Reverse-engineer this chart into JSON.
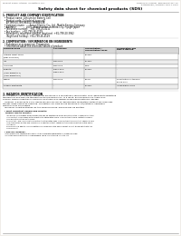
{
  "bg_color": "#f0ede8",
  "page_bg": "#ffffff",
  "header_left": "Product name: Lithium Ion Battery Cell",
  "header_right_line1": "Reference number: EBS25EC8APFA-75",
  "header_right_line2": "Established / Revision: Dec.7.2010",
  "title": "Safety data sheet for chemical products (SDS)",
  "section1_title": "1. PRODUCT AND COMPANY IDENTIFICATION",
  "section1_lines": [
    "  • Product name: Lithium Ion Battery Cell",
    "  • Product code: Cylindrical-type cell",
    "     BR18650U, BR18650U, BR18650A",
    "  • Company name:       Sanyo Electric Co., Ltd., Mobile Energy Company",
    "  • Address:               2001, Kamishinden, Sumoto-City, Hyogo, Japan",
    "  • Telephone number:   +81-799-20-4111",
    "  • Fax number:   +81-799-26-4129",
    "  • Emergency telephone number (daytime): +81-799-20-3962",
    "     (Night and holiday): +81-799-26-4129"
  ],
  "section2_title": "2. COMPOSITION / INFORMATION ON INGREDIENTS",
  "section2_sub1": "  • Substance or preparation: Preparation",
  "section2_sub2": "  • Information about the chemical nature of product:",
  "table_col0_header": "Chemical name",
  "table_headers": [
    "CAS number",
    "Concentration /\nConcentration range",
    "Classification and\nhazard labeling"
  ],
  "table_rows": [
    [
      "Lithium cobalt oxide\n(LiMn-Co-Ni2O4)",
      "-",
      "30-60%",
      "-"
    ],
    [
      "Iron",
      "7439-89-6",
      "10-30%",
      "-"
    ],
    [
      "Aluminum",
      "7429-90-5",
      "2-8%",
      "-"
    ],
    [
      "Graphite\n(Alkyl graphite-1)\n(Alkyl graphite-2)",
      "77590-42-5\n77582-44-2",
      "10-20%",
      "-"
    ],
    [
      "Copper",
      "7440-50-8",
      "5-15%",
      "Sensitization of the skin\ngroup No.2"
    ],
    [
      "Organic electrolyte",
      "-",
      "10-20%",
      "Inflammable liquid"
    ]
  ],
  "section3_title": "3. HAZARDS IDENTIFICATION",
  "section3_para1": "For the battery cell, chemical substances are stored in a hermetically sealed metal case, designed to withstand",
  "section3_para2": "temperature and pressure-temperature during normal use. As a result, during normal use, there is no",
  "section3_para3": "physical danger of ignition or explosion and there is no danger of hazardous materials leakage.",
  "section3_para4": "   However, if exposed to a fire, added mechanical shocks, decomposed, wires/stems without any measures,",
  "section3_para5": "the gas inside cannot be operated. The battery cell case will be breached or fire/extreme, hazardous",
  "section3_para6": "materials may be released.",
  "section3_para7": "   Moreover, if heated strongly by the surrounding fire, acid gas may be emitted.",
  "section3_bullet1": "  • Most important hazard and effects:",
  "section3_human": "    Human health effects:",
  "section3_human_lines": [
    "       Inhalation: The release of the electrolyte has an anesthesia action and stimulates in respiratory tract.",
    "       Skin contact: The release of the electrolyte stimulates a skin. The electrolyte skin contact causes a",
    "       sore and stimulation on the skin.",
    "       Eye contact: The release of the electrolyte stimulates eyes. The electrolyte eye contact causes a sore",
    "       and stimulation on the eye. Especially, a substance that causes a strong inflammation of the eye is",
    "       contained.",
    "       Environmental effects: Since a battery cell remains in the environment, do not throw out it into the",
    "       environment."
  ],
  "section3_bullet2": "  • Specific hazards:",
  "section3_specific": [
    "    If the electrolyte contacts with water, it will generate detrimental hydrogen fluoride.",
    "    Since the used electrolyte is inflammable liquid, do not bring close to fire."
  ]
}
